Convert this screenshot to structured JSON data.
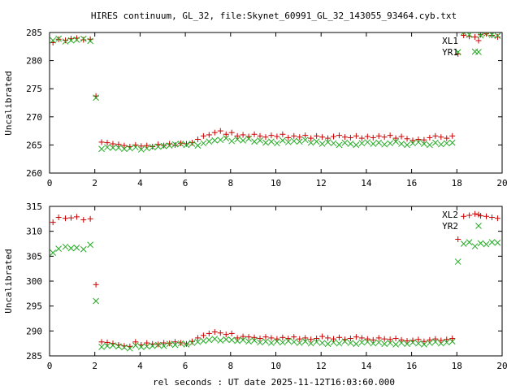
{
  "title": "HIRES continuum, GL_32, file:Skynet_60991_GL_32_143055_93464.cyb.txt",
  "xlabel": "rel seconds : UT date 2025-11-12T16:03:60.000",
  "colors": {
    "red": "#cc0000",
    "green": "#22aa22"
  },
  "chart_data": [
    {
      "type": "scatter",
      "ylabel": "Uncalibrated",
      "xlim": [
        0,
        20
      ],
      "ylim": [
        260,
        285
      ],
      "xticks": [
        0,
        2,
        4,
        6,
        8,
        10,
        12,
        14,
        16,
        18,
        20
      ],
      "yticks": [
        260,
        265,
        270,
        275,
        280,
        285
      ],
      "legend_position": "top-right",
      "series": [
        {
          "name": "XL1",
          "marker": "plus",
          "color": "#cc0000",
          "x": [
            0.15,
            0.4,
            0.7,
            0.95,
            1.2,
            1.5,
            1.8,
            2.05,
            2.3,
            2.55,
            2.8,
            3.05,
            3.3,
            3.55,
            3.8,
            4.05,
            4.3,
            4.55,
            4.8,
            5.05,
            5.3,
            5.55,
            5.8,
            6.05,
            6.3,
            6.55,
            6.8,
            7.05,
            7.3,
            7.55,
            7.8,
            8.05,
            8.3,
            8.55,
            8.8,
            9.05,
            9.3,
            9.55,
            9.8,
            10.05,
            10.3,
            10.55,
            10.8,
            11.05,
            11.3,
            11.55,
            11.8,
            12.05,
            12.3,
            12.55,
            12.8,
            13.05,
            13.3,
            13.55,
            13.8,
            14.05,
            14.3,
            14.55,
            14.8,
            15.05,
            15.3,
            15.55,
            15.8,
            16.05,
            16.3,
            16.55,
            16.8,
            17.05,
            17.3,
            17.55,
            17.8,
            18.05,
            18.3,
            18.55,
            18.8,
            19.05,
            19.3,
            19.55,
            19.8
          ],
          "y": [
            283.2,
            283.8,
            283.6,
            283.9,
            284.0,
            283.7,
            283.8,
            273.7,
            265.5,
            265.4,
            265.2,
            265.1,
            264.9,
            264.7,
            265.0,
            264.8,
            264.9,
            264.7,
            265.1,
            264.9,
            265.2,
            265.0,
            265.3,
            265.2,
            265.4,
            266.0,
            266.6,
            266.8,
            267.2,
            267.5,
            266.9,
            267.2,
            266.6,
            266.8,
            266.5,
            266.9,
            266.6,
            266.4,
            266.7,
            266.5,
            266.9,
            266.3,
            266.6,
            266.4,
            266.7,
            266.2,
            266.6,
            266.4,
            266.2,
            266.5,
            266.7,
            266.4,
            266.3,
            266.6,
            266.2,
            266.5,
            266.3,
            266.6,
            266.4,
            266.7,
            266.2,
            266.5,
            266.1,
            265.8,
            266.0,
            265.9,
            266.3,
            266.6,
            266.4,
            266.2,
            266.6,
            281.2,
            284.5,
            284.3,
            284.2,
            284.6,
            284.8,
            284.5,
            284.2
          ]
        },
        {
          "name": "YR1",
          "marker": "cross",
          "color": "#22aa22",
          "x": [
            0.15,
            0.4,
            0.7,
            0.95,
            1.2,
            1.5,
            1.8,
            2.05,
            2.3,
            2.55,
            2.8,
            3.05,
            3.3,
            3.55,
            3.8,
            4.05,
            4.3,
            4.55,
            4.8,
            5.05,
            5.3,
            5.55,
            5.8,
            6.05,
            6.3,
            6.55,
            6.8,
            7.05,
            7.3,
            7.55,
            7.8,
            8.05,
            8.3,
            8.55,
            8.8,
            9.05,
            9.3,
            9.55,
            9.8,
            10.05,
            10.3,
            10.55,
            10.8,
            11.05,
            11.3,
            11.55,
            11.8,
            12.05,
            12.3,
            12.55,
            12.8,
            13.05,
            13.3,
            13.55,
            13.8,
            14.05,
            14.3,
            14.55,
            14.8,
            15.05,
            15.3,
            15.55,
            15.8,
            16.05,
            16.3,
            16.55,
            16.8,
            17.05,
            17.3,
            17.55,
            17.8,
            18.05,
            18.3,
            18.55,
            18.8,
            19.05,
            19.3,
            19.55,
            19.8
          ],
          "y": [
            283.6,
            283.9,
            283.4,
            283.6,
            283.7,
            283.9,
            283.5,
            273.4,
            264.3,
            264.6,
            264.5,
            264.5,
            264.3,
            264.4,
            264.6,
            264.2,
            264.4,
            264.6,
            264.7,
            264.8,
            264.9,
            265.1,
            265.2,
            265.0,
            265.2,
            264.9,
            265.3,
            265.6,
            265.8,
            265.9,
            266.2,
            265.7,
            266.0,
            265.8,
            266.1,
            265.6,
            265.8,
            265.4,
            265.6,
            265.3,
            265.8,
            265.5,
            265.7,
            265.6,
            265.9,
            265.4,
            265.6,
            265.2,
            265.5,
            265.3,
            265.0,
            265.4,
            265.2,
            265.0,
            265.3,
            265.5,
            265.2,
            265.4,
            265.1,
            265.3,
            265.6,
            265.2,
            265.0,
            265.3,
            265.5,
            265.2,
            265.0,
            265.4,
            265.1,
            265.3,
            265.4,
            281.5,
            285.0,
            284.6,
            281.6,
            284.5,
            284.8,
            284.6,
            284.4
          ]
        }
      ]
    },
    {
      "type": "scatter",
      "ylabel": "Uncalibrated",
      "xlim": [
        0,
        20
      ],
      "ylim": [
        285,
        315
      ],
      "xticks": [
        0,
        2,
        4,
        6,
        8,
        10,
        12,
        14,
        16,
        18,
        20
      ],
      "yticks": [
        285,
        290,
        295,
        300,
        305,
        310,
        315
      ],
      "legend_position": "top-right",
      "series": [
        {
          "name": "XL2",
          "marker": "plus",
          "color": "#cc0000",
          "x": [
            0.15,
            0.4,
            0.7,
            0.95,
            1.2,
            1.5,
            1.8,
            2.05,
            2.3,
            2.55,
            2.8,
            3.05,
            3.3,
            3.55,
            3.8,
            4.05,
            4.3,
            4.55,
            4.8,
            5.05,
            5.3,
            5.55,
            5.8,
            6.05,
            6.3,
            6.55,
            6.8,
            7.05,
            7.3,
            7.55,
            7.8,
            8.05,
            8.3,
            8.55,
            8.8,
            9.05,
            9.3,
            9.55,
            9.8,
            10.05,
            10.3,
            10.55,
            10.8,
            11.05,
            11.3,
            11.55,
            11.8,
            12.05,
            12.3,
            12.55,
            12.8,
            13.05,
            13.3,
            13.55,
            13.8,
            14.05,
            14.3,
            14.55,
            14.8,
            15.05,
            15.3,
            15.55,
            15.8,
            16.05,
            16.3,
            16.55,
            16.8,
            17.05,
            17.3,
            17.55,
            17.8,
            18.05,
            18.3,
            18.55,
            18.8,
            19.05,
            19.3,
            19.55,
            19.8
          ],
          "y": [
            311.8,
            312.8,
            312.6,
            312.7,
            312.9,
            312.3,
            312.5,
            299.3,
            287.8,
            287.7,
            287.5,
            287.2,
            287.0,
            286.9,
            287.8,
            287.2,
            287.6,
            287.4,
            287.3,
            287.6,
            287.5,
            287.8,
            287.6,
            287.4,
            287.9,
            288.6,
            289.1,
            289.5,
            289.8,
            289.6,
            289.3,
            289.5,
            288.6,
            288.9,
            288.8,
            288.7,
            288.5,
            288.8,
            288.6,
            288.4,
            288.7,
            288.5,
            288.8,
            288.4,
            288.6,
            288.3,
            288.5,
            288.9,
            288.6,
            288.4,
            288.7,
            288.3,
            288.5,
            288.8,
            288.6,
            288.4,
            288.2,
            288.6,
            288.4,
            288.3,
            288.5,
            288.2,
            288.0,
            288.1,
            288.3,
            287.9,
            288.2,
            288.4,
            288.1,
            288.3,
            288.5,
            308.4,
            313.0,
            313.2,
            313.5,
            313.1,
            313.0,
            312.8,
            312.6
          ]
        },
        {
          "name": "YR2",
          "marker": "cross",
          "color": "#22aa22",
          "x": [
            0.15,
            0.4,
            0.7,
            0.95,
            1.2,
            1.5,
            1.8,
            2.05,
            2.3,
            2.55,
            2.8,
            3.05,
            3.3,
            3.55,
            3.8,
            4.05,
            4.3,
            4.55,
            4.8,
            5.05,
            5.3,
            5.55,
            5.8,
            6.05,
            6.3,
            6.55,
            6.8,
            7.05,
            7.3,
            7.55,
            7.8,
            8.05,
            8.3,
            8.55,
            8.8,
            9.05,
            9.3,
            9.55,
            9.8,
            10.05,
            10.3,
            10.55,
            10.8,
            11.05,
            11.3,
            11.55,
            11.8,
            12.05,
            12.3,
            12.55,
            12.8,
            13.05,
            13.3,
            13.55,
            13.8,
            14.05,
            14.3,
            14.55,
            14.8,
            15.05,
            15.3,
            15.55,
            15.8,
            16.05,
            16.3,
            16.55,
            16.8,
            17.05,
            17.3,
            17.55,
            17.8,
            18.05,
            18.3,
            18.55,
            18.8,
            19.05,
            19.3,
            19.55,
            19.8
          ],
          "y": [
            305.7,
            306.5,
            306.9,
            306.6,
            306.7,
            306.4,
            307.3,
            296.0,
            286.8,
            287.0,
            287.1,
            286.9,
            286.7,
            286.5,
            287.1,
            286.8,
            286.9,
            287.0,
            287.2,
            287.0,
            287.4,
            287.2,
            287.5,
            287.3,
            287.6,
            287.8,
            288.0,
            288.2,
            288.4,
            288.1,
            288.3,
            288.2,
            288.0,
            288.2,
            287.9,
            288.1,
            287.7,
            287.9,
            287.6,
            287.9,
            287.7,
            288.0,
            287.8,
            287.6,
            287.9,
            287.5,
            287.8,
            287.6,
            287.4,
            287.7,
            287.5,
            287.9,
            287.6,
            287.4,
            287.7,
            287.8,
            287.5,
            287.7,
            287.4,
            287.6,
            287.3,
            287.6,
            287.4,
            287.7,
            287.5,
            287.3,
            287.6,
            287.8,
            287.5,
            287.7,
            287.9,
            303.9,
            307.5,
            307.8,
            307.0,
            307.6,
            307.4,
            307.8,
            307.7
          ]
        }
      ]
    }
  ]
}
